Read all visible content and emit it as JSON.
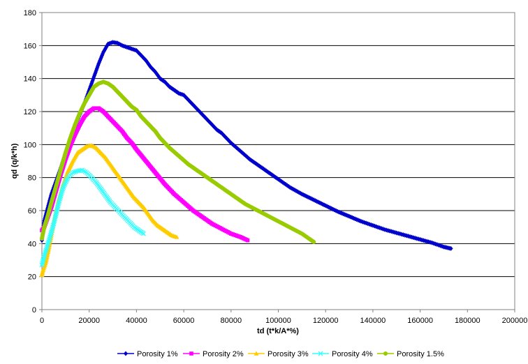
{
  "chart_data": {
    "type": "scatter",
    "title": "",
    "xlabel": "td (t*k/A*%)",
    "ylabel": "qd (q/k*h)",
    "xlim": [
      0,
      200000
    ],
    "ylim": [
      0,
      180
    ],
    "xticks": [
      0,
      20000,
      40000,
      60000,
      80000,
      100000,
      120000,
      140000,
      160000,
      180000,
      200000
    ],
    "yticks": [
      0,
      20,
      40,
      60,
      80,
      100,
      120,
      140,
      160,
      180
    ],
    "grid": "horizontal",
    "legend_position": "bottom",
    "series": [
      {
        "name": "Porosity 1%",
        "color": "#0000CC",
        "marker": "diamond",
        "points": [
          [
            0,
            42
          ],
          [
            1000,
            54
          ],
          [
            2500,
            62
          ],
          [
            4000,
            70
          ],
          [
            6000,
            78
          ],
          [
            8000,
            86
          ],
          [
            10000,
            95
          ],
          [
            12000,
            103
          ],
          [
            14000,
            111
          ],
          [
            16000,
            118
          ],
          [
            18000,
            125
          ],
          [
            20000,
            133
          ],
          [
            22000,
            141
          ],
          [
            24000,
            149
          ],
          [
            26000,
            156
          ],
          [
            28000,
            161
          ],
          [
            30000,
            162
          ],
          [
            32000,
            161.5
          ],
          [
            34000,
            160
          ],
          [
            36000,
            159
          ],
          [
            38000,
            158
          ],
          [
            40000,
            157
          ],
          [
            42000,
            154
          ],
          [
            44000,
            151
          ],
          [
            46000,
            147
          ],
          [
            48000,
            144
          ],
          [
            50000,
            140
          ],
          [
            52000,
            138
          ],
          [
            54000,
            135
          ],
          [
            56000,
            133
          ],
          [
            58000,
            131
          ],
          [
            60000,
            130
          ],
          [
            62000,
            127
          ],
          [
            64000,
            124
          ],
          [
            66000,
            121
          ],
          [
            68000,
            118
          ],
          [
            70000,
            115
          ],
          [
            72000,
            112
          ],
          [
            74000,
            109
          ],
          [
            76000,
            107
          ],
          [
            78000,
            104
          ],
          [
            80000,
            101
          ],
          [
            84000,
            96
          ],
          [
            88000,
            91
          ],
          [
            92000,
            87
          ],
          [
            96000,
            83
          ],
          [
            100000,
            79
          ],
          [
            105000,
            74
          ],
          [
            110000,
            70
          ],
          [
            115000,
            66.5
          ],
          [
            120000,
            63
          ],
          [
            125000,
            59.5
          ],
          [
            130000,
            56.5
          ],
          [
            135000,
            53.5
          ],
          [
            140000,
            51
          ],
          [
            145000,
            48.5
          ],
          [
            150000,
            46.5
          ],
          [
            155000,
            44.5
          ],
          [
            160000,
            42.5
          ],
          [
            165000,
            40.5
          ],
          [
            170000,
            38
          ],
          [
            173000,
            37
          ]
        ]
      },
      {
        "name": "Porosity 2%",
        "color": "#FF00FF",
        "marker": "square",
        "points": [
          [
            0,
            48
          ],
          [
            1000,
            50
          ],
          [
            2000,
            54
          ],
          [
            4000,
            62
          ],
          [
            6000,
            72
          ],
          [
            8000,
            82
          ],
          [
            10000,
            91
          ],
          [
            12000,
            99
          ],
          [
            14000,
            106
          ],
          [
            16000,
            112
          ],
          [
            18000,
            117
          ],
          [
            20000,
            120
          ],
          [
            22000,
            122
          ],
          [
            24000,
            122
          ],
          [
            26000,
            120
          ],
          [
            28000,
            117
          ],
          [
            30000,
            114
          ],
          [
            32000,
            111
          ],
          [
            34000,
            108
          ],
          [
            36000,
            104
          ],
          [
            38000,
            101
          ],
          [
            40000,
            97
          ],
          [
            44000,
            90
          ],
          [
            48000,
            83
          ],
          [
            52000,
            76
          ],
          [
            56000,
            70
          ],
          [
            60000,
            65
          ],
          [
            64000,
            60
          ],
          [
            68000,
            56
          ],
          [
            72000,
            52
          ],
          [
            76000,
            49
          ],
          [
            80000,
            46
          ],
          [
            84000,
            44
          ],
          [
            87000,
            42
          ]
        ]
      },
      {
        "name": "Porosity 3%",
        "color": "#FFCC00",
        "marker": "triangle",
        "points": [
          [
            0,
            21
          ],
          [
            500,
            24
          ],
          [
            1500,
            28
          ],
          [
            3000,
            38
          ],
          [
            5000,
            53
          ],
          [
            7000,
            66
          ],
          [
            9000,
            76
          ],
          [
            11000,
            84
          ],
          [
            13000,
            90
          ],
          [
            15000,
            95
          ],
          [
            17000,
            97
          ],
          [
            19000,
            99
          ],
          [
            21000,
            99.5
          ],
          [
            23000,
            98
          ],
          [
            25000,
            95
          ],
          [
            27000,
            92
          ],
          [
            29000,
            88
          ],
          [
            31000,
            84
          ],
          [
            33000,
            80
          ],
          [
            35000,
            76
          ],
          [
            37000,
            72
          ],
          [
            39000,
            68
          ],
          [
            41000,
            65
          ],
          [
            43000,
            62
          ],
          [
            45000,
            58
          ],
          [
            47000,
            54
          ],
          [
            49000,
            51
          ],
          [
            51000,
            49
          ],
          [
            53000,
            47
          ],
          [
            55000,
            45
          ],
          [
            57000,
            44
          ]
        ]
      },
      {
        "name": "Porosity 4%",
        "color": "#33FFFF",
        "marker": "x",
        "points": [
          [
            0,
            27
          ],
          [
            500,
            30
          ],
          [
            1500,
            35
          ],
          [
            3000,
            42
          ],
          [
            5000,
            52
          ],
          [
            7000,
            64
          ],
          [
            9000,
            74
          ],
          [
            11000,
            80
          ],
          [
            13000,
            83
          ],
          [
            15000,
            84
          ],
          [
            17000,
            84.5
          ],
          [
            19000,
            83
          ],
          [
            21000,
            80
          ],
          [
            23000,
            77
          ],
          [
            25000,
            73
          ],
          [
            27000,
            69
          ],
          [
            29000,
            65
          ],
          [
            31000,
            62
          ],
          [
            33000,
            59
          ],
          [
            35000,
            56
          ],
          [
            37000,
            53
          ],
          [
            39000,
            50
          ],
          [
            41000,
            48
          ],
          [
            43000,
            46
          ]
        ]
      },
      {
        "name": "Porosity 1.5%",
        "color": "#99CC00",
        "marker": "circle",
        "points": [
          [
            0,
            43
          ],
          [
            1000,
            50
          ],
          [
            2500,
            57
          ],
          [
            4000,
            65
          ],
          [
            6000,
            75
          ],
          [
            8000,
            85
          ],
          [
            10000,
            95
          ],
          [
            12000,
            104
          ],
          [
            14000,
            112
          ],
          [
            16000,
            119
          ],
          [
            18000,
            125
          ],
          [
            20000,
            130
          ],
          [
            22000,
            135
          ],
          [
            24000,
            137
          ],
          [
            26000,
            138
          ],
          [
            28000,
            137
          ],
          [
            30000,
            135
          ],
          [
            32000,
            132
          ],
          [
            34000,
            129
          ],
          [
            36000,
            126
          ],
          [
            38000,
            123
          ],
          [
            40000,
            121
          ],
          [
            42000,
            117
          ],
          [
            44000,
            114
          ],
          [
            46000,
            111
          ],
          [
            48000,
            108
          ],
          [
            50000,
            104
          ],
          [
            54000,
            98
          ],
          [
            58000,
            93
          ],
          [
            62000,
            88
          ],
          [
            66000,
            84
          ],
          [
            70000,
            80
          ],
          [
            74000,
            76
          ],
          [
            78000,
            72
          ],
          [
            82000,
            68
          ],
          [
            86000,
            64
          ],
          [
            90000,
            61
          ],
          [
            94000,
            58
          ],
          [
            98000,
            55
          ],
          [
            102000,
            52
          ],
          [
            106000,
            49
          ],
          [
            110000,
            46
          ],
          [
            113000,
            43
          ],
          [
            115000,
            41
          ]
        ]
      }
    ]
  }
}
